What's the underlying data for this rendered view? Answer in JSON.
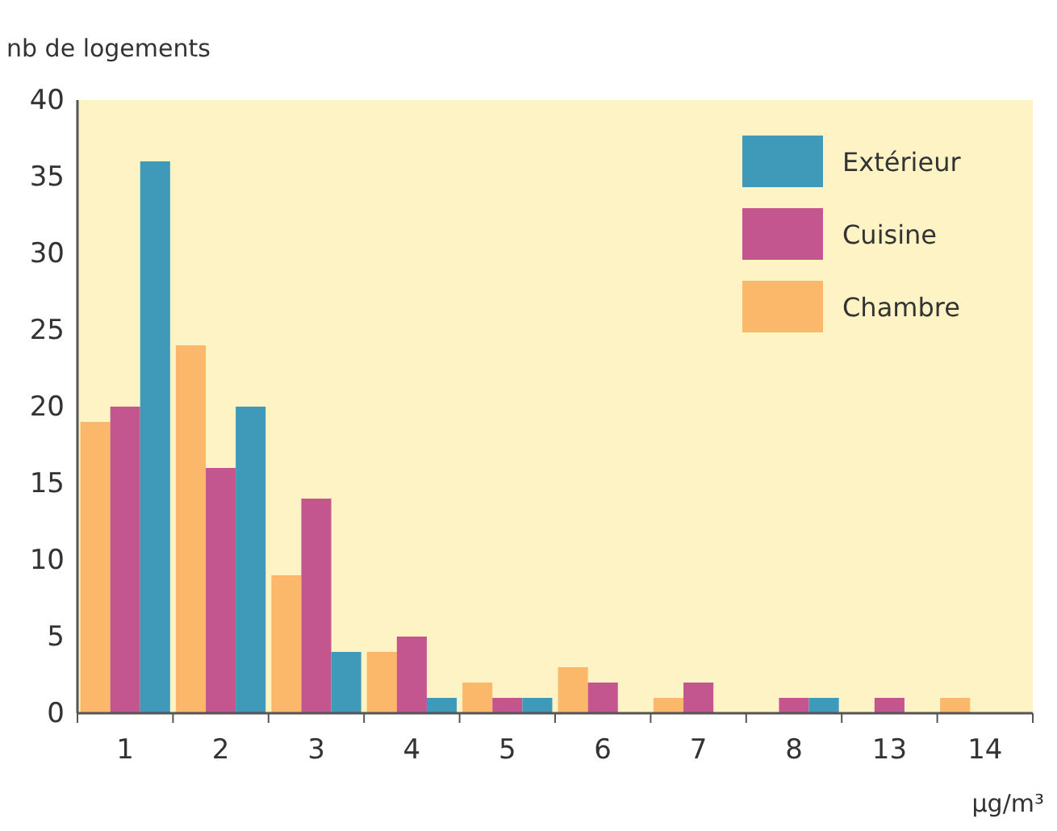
{
  "chart_data": {
    "type": "bar",
    "ylabel": "nb de logements",
    "xlabel": "µg/m³",
    "categories": [
      "1",
      "2",
      "3",
      "4",
      "5",
      "6",
      "7",
      "8",
      "13",
      "14"
    ],
    "series": [
      {
        "name": "Chambre",
        "color": "#fbb86b",
        "values": [
          19,
          24,
          9,
          4,
          2,
          3,
          1,
          0,
          0,
          1
        ]
      },
      {
        "name": "Cuisine",
        "color": "#c3558f",
        "values": [
          20,
          16,
          14,
          5,
          1,
          2,
          2,
          1,
          1,
          0
        ]
      },
      {
        "name": "Extérieur",
        "color": "#3e9ab8",
        "values": [
          36,
          20,
          4,
          1,
          1,
          0,
          0,
          1,
          0,
          0
        ]
      }
    ],
    "ylim": [
      0,
      40
    ],
    "yticks": [
      0,
      5,
      10,
      15,
      20,
      25,
      30,
      35,
      40
    ],
    "legend": "top right"
  }
}
